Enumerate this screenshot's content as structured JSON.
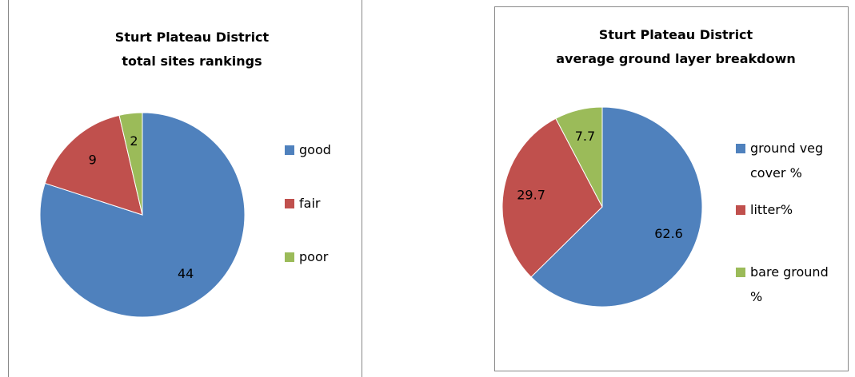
{
  "chart_data": [
    {
      "type": "pie",
      "title": "Sturt Plateau District\ntotal sites rankings",
      "series": [
        {
          "name": "good",
          "color": "#4f81bd",
          "values": [
            44
          ]
        },
        {
          "name": "fair",
          "color": "#c0504d",
          "values": [
            9
          ]
        },
        {
          "name": "poor",
          "color": "#9bbb59",
          "values": [
            2
          ]
        }
      ],
      "legend": "right"
    },
    {
      "type": "pie",
      "title": "Sturt Plateau District\naverage ground layer breakdown",
      "series": [
        {
          "name": "ground veg cover %",
          "color": "#4f81bd",
          "values": [
            62.6
          ]
        },
        {
          "name": "litter%",
          "color": "#c0504d",
          "values": [
            29.7
          ]
        },
        {
          "name": "bare ground %",
          "color": "#9bbb59",
          "values": [
            7.7
          ]
        }
      ],
      "legend": "right"
    }
  ]
}
